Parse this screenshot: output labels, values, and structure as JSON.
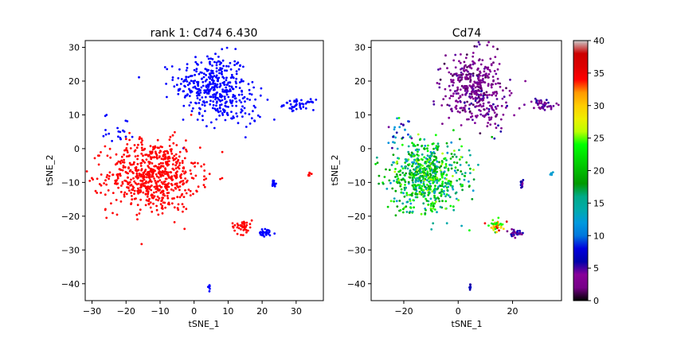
{
  "chart_data": [
    {
      "type": "scatter",
      "title": "rank 1: Cd74 6.430",
      "xlabel": "tSNE_1",
      "ylabel": "tSNE_2",
      "xlim": [
        -32,
        38
      ],
      "ylim": [
        -45,
        32
      ],
      "xticks": [
        -30,
        -20,
        -10,
        0,
        10,
        20,
        30
      ],
      "yticks": [
        30,
        20,
        10,
        0,
        -10,
        -20,
        -30,
        -40
      ],
      "grid": false,
      "series": [
        {
          "color": "#0000ff",
          "clusters": [
            {
              "cx": 5,
              "cy": 19,
              "sx": 7,
              "sy": 6,
              "n": 330
            },
            {
              "cx": 11,
              "cy": 12,
              "sx": 6,
              "sy": 4,
              "n": 90
            },
            {
              "cx": 31,
              "cy": 13,
              "sx": 3,
              "sy": 1,
              "n": 45
            },
            {
              "cx": 21,
              "cy": -25,
              "sx": 2,
              "sy": 0.8,
              "n": 30
            },
            {
              "cx": 23.5,
              "cy": -10.5,
              "sx": 0.4,
              "sy": 1,
              "n": 15
            },
            {
              "cx": 4.5,
              "cy": -41,
              "sx": 0.4,
              "sy": 0.6,
              "n": 8
            },
            {
              "cx": -22,
              "cy": 6,
              "sx": 3,
              "sy": 3,
              "n": 20
            }
          ]
        },
        {
          "color": "#ff0000",
          "clusters": [
            {
              "cx": -12,
              "cy": -8,
              "sx": 9,
              "sy": 7,
              "n": 650
            },
            {
              "cx": 14,
              "cy": -23,
              "sx": 2,
              "sy": 1.5,
              "n": 40
            },
            {
              "cx": 34,
              "cy": -7.5,
              "sx": 0.6,
              "sy": 0.3,
              "n": 6
            }
          ]
        }
      ]
    },
    {
      "type": "scatter",
      "title": "Cd74",
      "xlabel": "tSNE_1",
      "ylabel": "tSNE_2",
      "xlim": [
        -32,
        38
      ],
      "ylim": [
        -45,
        32
      ],
      "xticks": [
        -20,
        0,
        20
      ],
      "yticks": [
        30,
        20,
        10,
        0,
        -10,
        -20,
        -30,
        -40
      ],
      "grid": false,
      "colorbar": {
        "min": 0,
        "max": 40,
        "ticks": [
          40,
          35,
          30,
          25,
          20,
          15,
          10,
          5,
          0
        ],
        "colormap": "nipy_spectral"
      },
      "clusters": [
        {
          "cx": 5,
          "cy": 19,
          "sx": 7,
          "sy": 6,
          "n": 330,
          "vmin": 1,
          "vmax": 5
        },
        {
          "cx": 11,
          "cy": 12,
          "sx": 6,
          "sy": 4,
          "n": 90,
          "vmin": 2,
          "vmax": 6
        },
        {
          "cx": 31,
          "cy": 13,
          "sx": 3,
          "sy": 1,
          "n": 45,
          "vmin": 2,
          "vmax": 6
        },
        {
          "cx": -12,
          "cy": -8,
          "sx": 9,
          "sy": 7,
          "n": 650,
          "vmin": 11,
          "vmax": 26
        },
        {
          "cx": 14,
          "cy": -23,
          "sx": 2,
          "sy": 1.5,
          "n": 40,
          "vmin": 20,
          "vmax": 37
        },
        {
          "cx": 21,
          "cy": -25,
          "sx": 2,
          "sy": 0.8,
          "n": 30,
          "vmin": 2,
          "vmax": 8
        },
        {
          "cx": 23.5,
          "cy": -10.5,
          "sx": 0.4,
          "sy": 1,
          "n": 15,
          "vmin": 3,
          "vmax": 8
        },
        {
          "cx": 34,
          "cy": -7.5,
          "sx": 0.6,
          "sy": 0.3,
          "n": 6,
          "vmin": 10,
          "vmax": 14
        },
        {
          "cx": 4.5,
          "cy": -41,
          "sx": 0.4,
          "sy": 0.6,
          "n": 8,
          "vmin": 4,
          "vmax": 10
        },
        {
          "cx": -22,
          "cy": 6,
          "sx": 3,
          "sy": 3,
          "n": 20,
          "vmin": 4,
          "vmax": 14
        }
      ]
    }
  ]
}
